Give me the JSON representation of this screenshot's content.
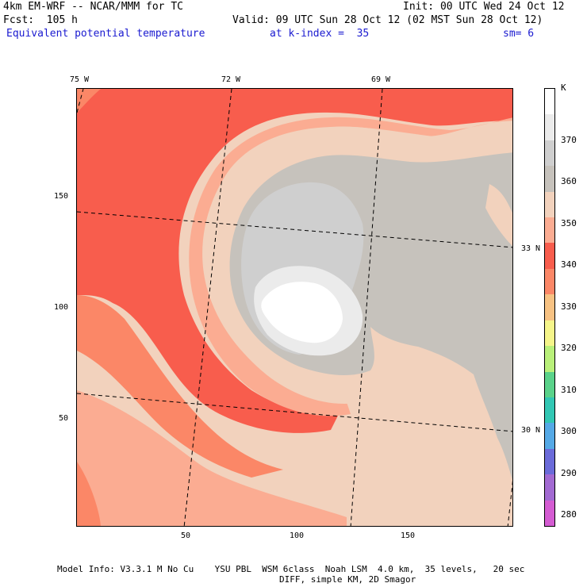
{
  "header": {
    "left1": "4km EM-WRF -- NCAR/MMM for TC",
    "left2": "Fcst:  105 h",
    "right1": "Init: 00 UTC Wed 24 Oct 12",
    "right2": "Valid: 09 UTC Sun 28 Oct 12 (02 MST Sun 28 Oct 12)",
    "field": "Equivalent potential temperature",
    "level": "at k-index =  35",
    "smooth": "sm= 6"
  },
  "map": {
    "lon_labels": [
      "75 W",
      "72 W",
      "69 W"
    ],
    "lat_labels": [
      "33 N",
      "30 N"
    ],
    "x_ticks": [
      "50",
      "100",
      "150"
    ],
    "y_ticks": [
      "150",
      "100",
      "50"
    ]
  },
  "colorbar": {
    "unit": "K",
    "labels": [
      "370",
      "360",
      "350",
      "340",
      "330",
      "320",
      "310",
      "300",
      "290",
      "280"
    ],
    "colors": [
      "#ffffff",
      "#ebebeb",
      "#cfcfcf",
      "#c6c2bc",
      "#f2d2bd",
      "#fbac92",
      "#f85d4d",
      "#fb8767",
      "#f7c283",
      "#f5f58a",
      "#b9f07a",
      "#5ad28a",
      "#32c7b4",
      "#55a9e6",
      "#6b6bd9",
      "#a26ad2",
      "#d45cd2"
    ]
  },
  "footer": {
    "line1": "Model Info: V3.3.1 M No Cu    YSU PBL  WSM 6class  Noah LSM  4.0 km,  35 levels,   20 sec",
    "line2": "DIFF, simple KM, 2D Smagor"
  }
}
